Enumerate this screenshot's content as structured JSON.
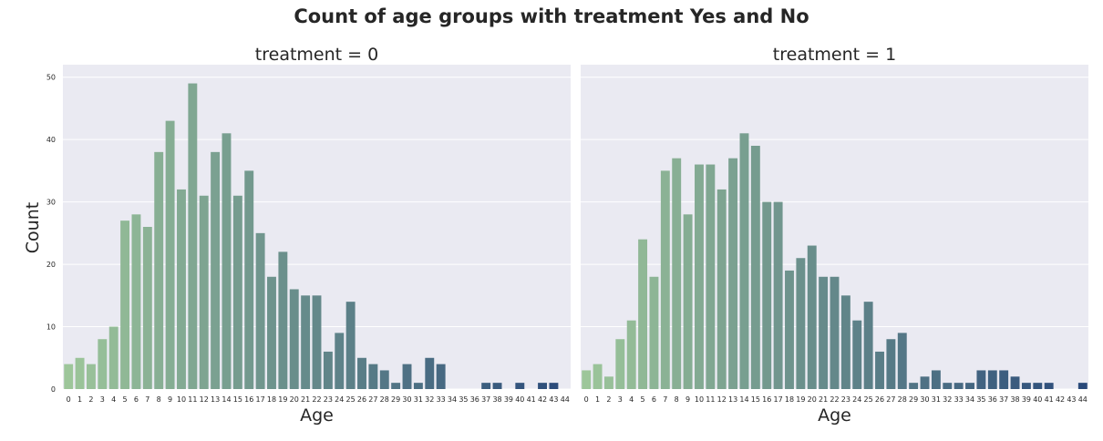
{
  "figure": {
    "title": "Count of age groups with treatment Yes and No",
    "ylabel": "Count",
    "palette": {
      "start": "#9dc69a",
      "end": "#2a4a7a",
      "background": "#eaeaf2",
      "grid": "#ffffff"
    }
  },
  "chart_data": [
    {
      "type": "bar",
      "title": "treatment = 0",
      "xlabel": "Age",
      "ylabel": "Count",
      "ylim": [
        0,
        52
      ],
      "yticks": [
        0,
        10,
        20,
        30,
        40,
        50
      ],
      "grid": true,
      "categories": [
        "0",
        "1",
        "2",
        "3",
        "4",
        "5",
        "6",
        "7",
        "8",
        "9",
        "10",
        "11",
        "12",
        "13",
        "14",
        "15",
        "16",
        "17",
        "18",
        "19",
        "20",
        "21",
        "22",
        "23",
        "24",
        "25",
        "26",
        "27",
        "28",
        "29",
        "30",
        "31",
        "32",
        "33",
        "34",
        "35",
        "36",
        "37",
        "38",
        "39",
        "40",
        "41",
        "42",
        "43",
        "44"
      ],
      "values": [
        4,
        5,
        4,
        8,
        10,
        27,
        28,
        26,
        38,
        43,
        32,
        49,
        31,
        38,
        41,
        31,
        35,
        25,
        18,
        22,
        16,
        15,
        15,
        6,
        9,
        14,
        5,
        4,
        3,
        1,
        4,
        1,
        5,
        4,
        0,
        0,
        0,
        1,
        1,
        0,
        1,
        0,
        1,
        1,
        0
      ]
    },
    {
      "type": "bar",
      "title": "treatment = 1",
      "xlabel": "Age",
      "ylabel": "",
      "ylim": [
        0,
        52
      ],
      "yticks": [
        0,
        10,
        20,
        30,
        40,
        50
      ],
      "grid": true,
      "categories": [
        "0",
        "1",
        "2",
        "3",
        "4",
        "5",
        "6",
        "7",
        "8",
        "9",
        "10",
        "11",
        "12",
        "13",
        "14",
        "15",
        "16",
        "17",
        "18",
        "19",
        "20",
        "21",
        "22",
        "23",
        "24",
        "25",
        "26",
        "27",
        "28",
        "29",
        "30",
        "31",
        "32",
        "33",
        "34",
        "35",
        "36",
        "37",
        "38",
        "39",
        "40",
        "41",
        "42",
        "43",
        "44"
      ],
      "values": [
        3,
        4,
        2,
        8,
        11,
        24,
        18,
        35,
        37,
        28,
        36,
        36,
        32,
        37,
        41,
        39,
        30,
        30,
        19,
        21,
        23,
        18,
        18,
        15,
        11,
        14,
        6,
        8,
        9,
        1,
        2,
        3,
        1,
        1,
        1,
        3,
        3,
        3,
        2,
        1,
        1,
        1,
        0,
        0,
        1
      ]
    }
  ]
}
